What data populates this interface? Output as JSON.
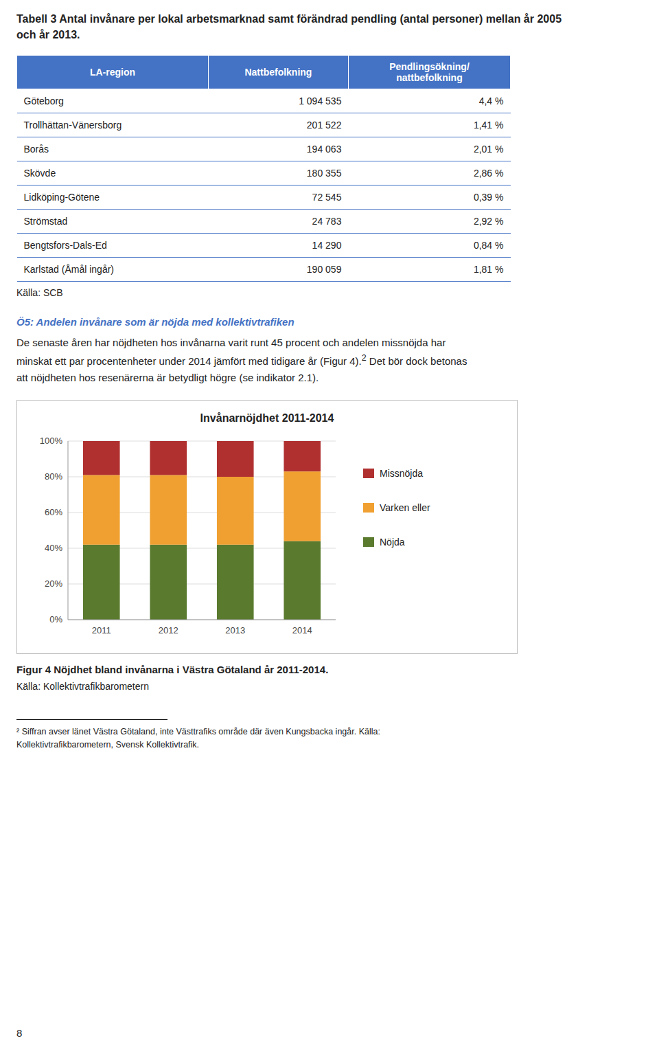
{
  "page_title": "Tabell 3 Antal invånare per lokal arbetsmarknad samt förändrad pendling (antal personer) mellan år 2005\noch år 2013.",
  "table": {
    "header": [
      "LA-region",
      "Nattbefolkning",
      "Pendlingsökning/\nnattbefolkning"
    ],
    "rows": [
      [
        "Göteborg",
        "1 094 535",
        "4,4 %"
      ],
      [
        "Trollhättan-Vänersborg",
        "201 522",
        "1,41 %"
      ],
      [
        "Borås",
        "194 063",
        "2,01 %"
      ],
      [
        "Skövde",
        "180 355",
        "2,86 %"
      ],
      [
        "Lidköping-Götene",
        "72 545",
        "0,39 %"
      ],
      [
        "Strömstad",
        "24 783",
        "2,92 %"
      ],
      [
        "Bengtsfors-Dals-Ed",
        "14 290",
        "0,84 %"
      ],
      [
        "Karlstad (Åmål ingår)",
        "190 059",
        "1,81 %"
      ]
    ],
    "source": "Källa: SCB"
  },
  "section_heading": "Ö5: Andelen invånare som är nöjda med kollektivtrafiken",
  "body": {
    "line1": "De senaste åren har nöjdheten hos invånarna varit runt 45 procent och andelen missnöjda har",
    "line2": "minskat ett par procentenheter under 2014 jämfört med tidigare år (Figur 4).",
    "superscript": "2",
    "line2b": " Det bör dock betonas",
    "line3": "att nöjdheten hos resenärerna är betydligt högre (se indikator 2.1)."
  },
  "chart_data": {
    "type": "bar",
    "title": "Invånarnöjdhet 2011-2014",
    "stacked": true,
    "categories": [
      "2011",
      "2012",
      "2013",
      "2014"
    ],
    "series": [
      {
        "name": "Nöjda",
        "color": "#5a7a2e",
        "values": [
          42,
          42,
          42,
          44
        ]
      },
      {
        "name": "Varken eller",
        "color": "#f0a030",
        "values": [
          39,
          39,
          38,
          39
        ]
      },
      {
        "name": "Missnöjda",
        "color": "#b03030",
        "values": [
          19,
          19,
          20,
          17
        ]
      }
    ],
    "ylim": [
      0,
      100
    ],
    "yticks": [
      {
        "value": 0,
        "label": "0%"
      },
      {
        "value": 20,
        "label": "20%"
      },
      {
        "value": 40,
        "label": "40%"
      },
      {
        "value": 60,
        "label": "60%"
      },
      {
        "value": 80,
        "label": "80%"
      },
      {
        "value": 100,
        "label": "100%"
      }
    ],
    "grid": true,
    "legend": "right"
  },
  "figure_caption": "Figur 4 Nöjdhet bland invånarna i Västra Götaland år 2011-2014.",
  "chart_source": "Källa: Kollektivtrafikbarometern",
  "footnote": "² Siffran avser länet Västra Götaland, inte Västtrafiks område där även Kungsbacka ingår. Källa:\nKollektivtrafikbarometern, Svensk Kollektivtrafik.",
  "page_number": "8"
}
